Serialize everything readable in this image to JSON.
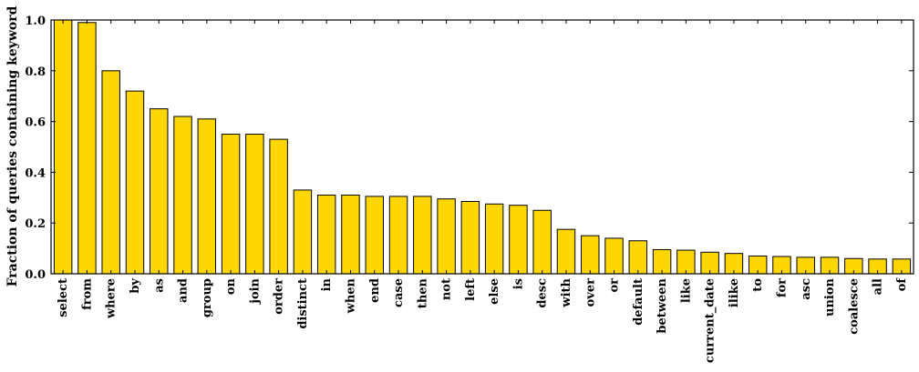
{
  "chart_data": {
    "type": "bar",
    "title": "",
    "xlabel": "",
    "ylabel": "Fraction of queries containing keyword",
    "ylim": [
      0.0,
      1.0
    ],
    "yticks": [
      "0.0",
      "0.2",
      "0.4",
      "0.6",
      "0.8",
      "1.0"
    ],
    "grid": false,
    "bar_color": "#ffd700",
    "categories": [
      "select",
      "from",
      "where",
      "by",
      "as",
      "and",
      "group",
      "on",
      "join",
      "order",
      "distinct",
      "in",
      "when",
      "end",
      "case",
      "then",
      "not",
      "left",
      "else",
      "is",
      "desc",
      "with",
      "over",
      "or",
      "default",
      "between",
      "like",
      "current_date",
      "ilike",
      "to",
      "for",
      "asc",
      "union",
      "coalesce",
      "all",
      "of"
    ],
    "values": [
      1.0,
      0.99,
      0.8,
      0.72,
      0.65,
      0.62,
      0.61,
      0.55,
      0.55,
      0.53,
      0.33,
      0.31,
      0.31,
      0.305,
      0.305,
      0.305,
      0.295,
      0.285,
      0.275,
      0.27,
      0.25,
      0.175,
      0.15,
      0.14,
      0.13,
      0.095,
      0.093,
      0.085,
      0.08,
      0.07,
      0.068,
      0.065,
      0.065,
      0.06,
      0.058,
      0.058
    ]
  }
}
